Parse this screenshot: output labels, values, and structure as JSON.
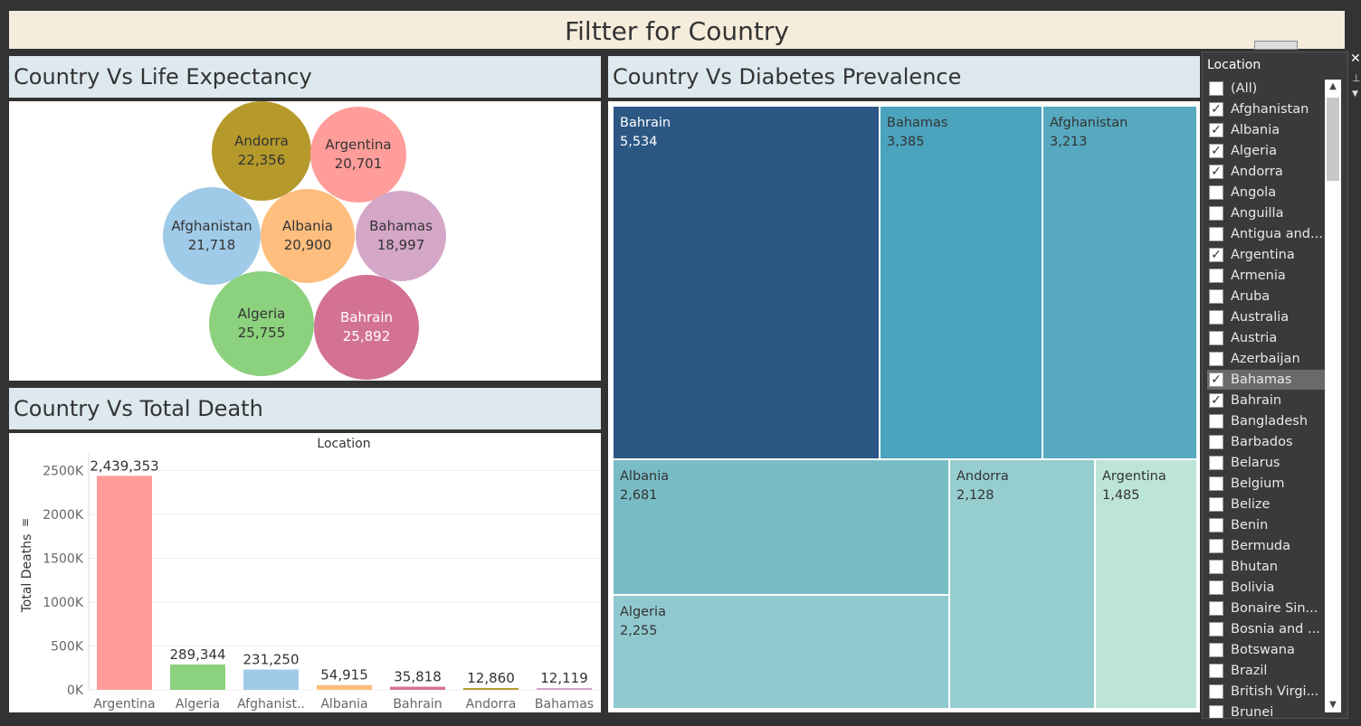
{
  "dashboard_title": "Filtter for Country",
  "life_expectancy": {
    "title": "Country Vs Life Expectancy",
    "bubbles": [
      {
        "country": "Andorra",
        "value": "22,356",
        "color": "#b5992a"
      },
      {
        "country": "Argentina",
        "value": "20,701",
        "color": "#ff9d9a"
      },
      {
        "country": "Afghanistan",
        "value": "21,718",
        "color": "#a0cbe8"
      },
      {
        "country": "Albania",
        "value": "20,900",
        "color": "#ffbe7d"
      },
      {
        "country": "Bahamas",
        "value": "18,997",
        "color": "#d4a6c8"
      },
      {
        "country": "Algeria",
        "value": "25,755",
        "color": "#8cd17d"
      },
      {
        "country": "Bahrain",
        "value": "25,892",
        "color": "#d37295"
      }
    ]
  },
  "diabetes": {
    "title": "Country Vs Diabetes Prevalence",
    "cells": [
      {
        "country": "Bahrain",
        "value": "5,534",
        "color": "#2c5785"
      },
      {
        "country": "Bahamas",
        "value": "3,385",
        "color": "#4ba3bd"
      },
      {
        "country": "Afghanistan",
        "value": "3,213",
        "color": "#56a9bf"
      },
      {
        "country": "Albania",
        "value": "2,681",
        "color": "#78bcc6"
      },
      {
        "country": "Andorra",
        "value": "2,128",
        "color": "#96cdcf"
      },
      {
        "country": "Argentina",
        "value": "1,485",
        "color": "#bce4d8"
      },
      {
        "country": "Algeria",
        "value": "2,255",
        "color": "#8fc9cf"
      }
    ]
  },
  "total_death": {
    "title": "Country Vs Total Death",
    "chart_data": {
      "type": "bar",
      "title": "Location",
      "ylabel": "Total Deaths",
      "ylim": [
        0,
        2700000
      ],
      "yticks": [
        0,
        500000,
        1000000,
        1500000,
        2000000,
        2500000
      ],
      "ytick_labels": [
        "0K",
        "500K",
        "1000K",
        "1500K",
        "2000K",
        "2500K"
      ],
      "categories": [
        "Argentina",
        "Algeria",
        "Afghanist..",
        "Albania",
        "Bahrain",
        "Andorra",
        "Bahamas"
      ],
      "values": [
        2439353,
        289344,
        231250,
        54915,
        35818,
        12860,
        12119
      ],
      "value_labels": [
        "2,439,353",
        "289,344",
        "231,250",
        "54,915",
        "35,818",
        "12,860",
        "12,119"
      ],
      "colors": [
        "#ff9d9a",
        "#8cd17d",
        "#a0cbe8",
        "#ffbe7d",
        "#d37295",
        "#b5992a",
        "#d4a6c8"
      ]
    }
  },
  "filter": {
    "title": "Location",
    "items": [
      {
        "label": "(All)",
        "checked": false
      },
      {
        "label": "Afghanistan",
        "checked": true
      },
      {
        "label": "Albania",
        "checked": true
      },
      {
        "label": "Algeria",
        "checked": true
      },
      {
        "label": "Andorra",
        "checked": true
      },
      {
        "label": "Angola",
        "checked": false
      },
      {
        "label": "Anguilla",
        "checked": false
      },
      {
        "label": "Antigua and...",
        "checked": false
      },
      {
        "label": "Argentina",
        "checked": true
      },
      {
        "label": "Armenia",
        "checked": false
      },
      {
        "label": "Aruba",
        "checked": false
      },
      {
        "label": "Australia",
        "checked": false
      },
      {
        "label": "Austria",
        "checked": false
      },
      {
        "label": "Azerbaijan",
        "checked": false
      },
      {
        "label": "Bahamas",
        "checked": true,
        "selected": true
      },
      {
        "label": "Bahrain",
        "checked": true
      },
      {
        "label": "Bangladesh",
        "checked": false
      },
      {
        "label": "Barbados",
        "checked": false
      },
      {
        "label": "Belarus",
        "checked": false
      },
      {
        "label": "Belgium",
        "checked": false
      },
      {
        "label": "Belize",
        "checked": false
      },
      {
        "label": "Benin",
        "checked": false
      },
      {
        "label": "Bermuda",
        "checked": false
      },
      {
        "label": "Bhutan",
        "checked": false
      },
      {
        "label": "Bolivia",
        "checked": false
      },
      {
        "label": "Bonaire Sin...",
        "checked": false
      },
      {
        "label": "Bosnia and ...",
        "checked": false
      },
      {
        "label": "Botswana",
        "checked": false
      },
      {
        "label": "Brazil",
        "checked": false
      },
      {
        "label": "British Virgi...",
        "checked": false
      },
      {
        "label": "Brunei",
        "checked": false
      }
    ],
    "check_glyph": "✓"
  }
}
